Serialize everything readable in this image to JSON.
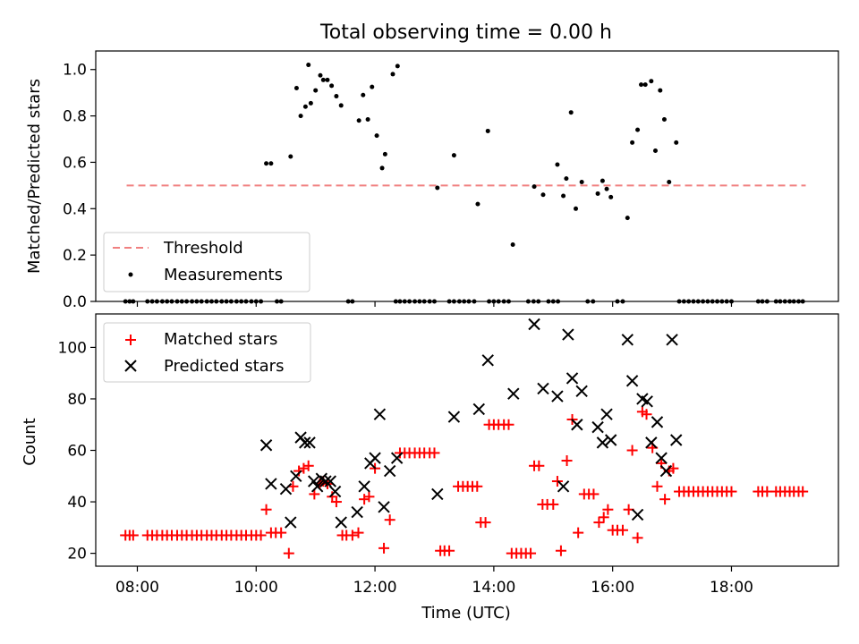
{
  "figure": {
    "title": "Total observing time = 0.00 h",
    "xlabel": "Time (UTC)",
    "xticks": [
      {
        "value": 8,
        "label": "08:00"
      },
      {
        "value": 10,
        "label": "10:00"
      },
      {
        "value": 12,
        "label": "12:00"
      },
      {
        "value": 14,
        "label": "14:00"
      },
      {
        "value": 16,
        "label": "16:00"
      },
      {
        "value": 18,
        "label": "18:00"
      }
    ],
    "xlim": [
      7.3,
      19.8
    ]
  },
  "chart_data": [
    {
      "type": "scatter",
      "panel": "top",
      "ylabel": "Matched/Predicted stars",
      "ylim": [
        0,
        1.08
      ],
      "yticks": [
        {
          "value": 0,
          "label": "0.0"
        },
        {
          "value": 0.2,
          "label": "0.2"
        },
        {
          "value": 0.4,
          "label": "0.4"
        },
        {
          "value": 0.6,
          "label": "0.6"
        },
        {
          "value": 0.8,
          "label": "0.8"
        },
        {
          "value": 1.0,
          "label": "1.0"
        }
      ],
      "legend_position": "lower-left",
      "legend": [
        "Threshold",
        "Measurements"
      ],
      "threshold": {
        "name": "Threshold",
        "value": 0.5,
        "x_range": [
          7.82,
          19.25
        ],
        "color": "#f08080",
        "style": "dashed"
      },
      "measurements": {
        "name": "Measurements",
        "color": "#000000",
        "x": [
          7.8,
          7.87,
          7.93,
          8.17,
          8.25,
          8.33,
          8.42,
          8.5,
          8.58,
          8.67,
          8.75,
          8.83,
          8.92,
          9.0,
          9.08,
          9.17,
          9.25,
          9.33,
          9.42,
          9.5,
          9.58,
          9.67,
          9.75,
          9.83,
          9.92,
          10.0,
          10.08,
          10.35,
          10.42,
          11.55,
          11.62,
          12.35,
          12.42,
          12.5,
          12.58,
          12.67,
          12.75,
          12.83,
          12.92,
          13.0,
          13.25,
          13.33,
          13.42,
          13.5,
          13.58,
          13.67,
          13.92,
          14.0,
          14.08,
          14.17,
          14.25,
          14.58,
          14.67,
          14.75,
          14.92,
          15.0,
          15.08,
          15.58,
          15.67,
          16.08,
          16.17,
          17.12,
          17.2,
          17.28,
          17.36,
          17.44,
          17.52,
          17.6,
          17.68,
          17.76,
          17.84,
          17.92,
          18.0,
          18.45,
          18.52,
          18.6,
          18.75,
          18.82,
          18.9,
          18.98,
          19.05,
          19.13,
          19.2,
          10.17,
          10.25,
          10.58,
          10.68,
          10.75,
          10.83,
          10.88,
          10.92,
          11.0,
          11.08,
          11.13,
          11.2,
          11.27,
          11.35,
          11.43,
          11.73,
          11.8,
          11.88,
          11.95,
          12.03,
          12.12,
          12.17,
          12.3,
          12.38,
          13.05,
          13.33,
          13.73,
          13.9,
          14.32,
          14.68,
          14.83,
          15.07,
          15.17,
          15.22,
          15.3,
          15.38,
          15.48,
          15.75,
          15.83,
          15.9,
          15.97,
          16.25,
          16.33,
          16.42,
          16.48,
          16.55,
          16.65,
          16.72,
          16.8,
          16.87,
          16.95,
          17.07
        ],
        "y": [
          0,
          0,
          0,
          0,
          0,
          0,
          0,
          0,
          0,
          0,
          0,
          0,
          0,
          0,
          0,
          0,
          0,
          0,
          0,
          0,
          0,
          0,
          0,
          0,
          0,
          0,
          0,
          0,
          0,
          0,
          0,
          0,
          0,
          0,
          0,
          0,
          0,
          0,
          0,
          0,
          0,
          0,
          0,
          0,
          0,
          0,
          0,
          0,
          0,
          0,
          0,
          0,
          0,
          0,
          0,
          0,
          0,
          0,
          0,
          0,
          0,
          0,
          0,
          0,
          0,
          0,
          0,
          0,
          0,
          0,
          0,
          0,
          0,
          0,
          0,
          0,
          0,
          0,
          0,
          0,
          0,
          0,
          0,
          0.595,
          0.595,
          0.625,
          0.92,
          0.8,
          0.84,
          1.02,
          0.855,
          0.91,
          0.975,
          0.955,
          0.955,
          0.93,
          0.885,
          0.845,
          0.78,
          0.89,
          0.785,
          0.925,
          0.715,
          0.575,
          0.635,
          0.98,
          1.015,
          0.49,
          0.63,
          0.42,
          0.735,
          0.245,
          0.495,
          0.46,
          0.59,
          0.455,
          0.53,
          0.815,
          0.4,
          0.515,
          0.465,
          0.52,
          0.485,
          0.45,
          0.36,
          0.685,
          0.74,
          0.935,
          0.935,
          0.95,
          0.65,
          0.91,
          0.785,
          0.515,
          0.685
        ]
      }
    },
    {
      "type": "scatter",
      "panel": "bottom",
      "ylabel": "Count",
      "ylim": [
        15,
        113
      ],
      "yticks": [
        {
          "value": 20,
          "label": "20"
        },
        {
          "value": 40,
          "label": "40"
        },
        {
          "value": 60,
          "label": "60"
        },
        {
          "value": 80,
          "label": "80"
        },
        {
          "value": 100,
          "label": "100"
        }
      ],
      "legend_position": "upper-left",
      "legend": [
        "Matched stars",
        "Predicted stars"
      ],
      "series": [
        {
          "name": "Matched stars",
          "marker": "plus",
          "color": "#ff0000",
          "points": [
            [
              7.8,
              27
            ],
            [
              7.87,
              27
            ],
            [
              7.93,
              27
            ],
            [
              8.17,
              27
            ],
            [
              8.25,
              27
            ],
            [
              8.33,
              27
            ],
            [
              8.42,
              27
            ],
            [
              8.5,
              27
            ],
            [
              8.58,
              27
            ],
            [
              8.67,
              27
            ],
            [
              8.75,
              27
            ],
            [
              8.83,
              27
            ],
            [
              8.92,
              27
            ],
            [
              9.0,
              27
            ],
            [
              9.08,
              27
            ],
            [
              9.17,
              27
            ],
            [
              9.25,
              27
            ],
            [
              9.33,
              27
            ],
            [
              9.42,
              27
            ],
            [
              9.5,
              27
            ],
            [
              9.58,
              27
            ],
            [
              9.67,
              27
            ],
            [
              9.75,
              27
            ],
            [
              9.83,
              27
            ],
            [
              9.92,
              27
            ],
            [
              10.0,
              27
            ],
            [
              10.08,
              27
            ],
            [
              10.17,
              37
            ],
            [
              10.25,
              28
            ],
            [
              10.33,
              28
            ],
            [
              10.42,
              28
            ],
            [
              10.55,
              20
            ],
            [
              10.62,
              46
            ],
            [
              10.72,
              52
            ],
            [
              10.8,
              53
            ],
            [
              10.88,
              54
            ],
            [
              10.98,
              43
            ],
            [
              11.07,
              47
            ],
            [
              11.13,
              48
            ],
            [
              11.2,
              47
            ],
            [
              11.28,
              42
            ],
            [
              11.35,
              40
            ],
            [
              11.45,
              27
            ],
            [
              11.52,
              27
            ],
            [
              11.62,
              27
            ],
            [
              11.72,
              28
            ],
            [
              11.82,
              41
            ],
            [
              11.9,
              42
            ],
            [
              12.0,
              53
            ],
            [
              12.15,
              22
            ],
            [
              12.25,
              33
            ],
            [
              12.42,
              59
            ],
            [
              12.5,
              59
            ],
            [
              12.58,
              59
            ],
            [
              12.67,
              59
            ],
            [
              12.75,
              59
            ],
            [
              12.83,
              59
            ],
            [
              12.92,
              59
            ],
            [
              13.0,
              59
            ],
            [
              13.1,
              21
            ],
            [
              13.17,
              21
            ],
            [
              13.25,
              21
            ],
            [
              13.4,
              46
            ],
            [
              13.48,
              46
            ],
            [
              13.56,
              46
            ],
            [
              13.64,
              46
            ],
            [
              13.72,
              46
            ],
            [
              13.78,
              32
            ],
            [
              13.86,
              32
            ],
            [
              13.92,
              70
            ],
            [
              14.0,
              70
            ],
            [
              14.08,
              70
            ],
            [
              14.17,
              70
            ],
            [
              14.25,
              70
            ],
            [
              14.3,
              20
            ],
            [
              14.38,
              20
            ],
            [
              14.46,
              20
            ],
            [
              14.54,
              20
            ],
            [
              14.62,
              20
            ],
            [
              14.68,
              54
            ],
            [
              14.76,
              54
            ],
            [
              14.82,
              39
            ],
            [
              14.9,
              39
            ],
            [
              15.0,
              39
            ],
            [
              15.07,
              48
            ],
            [
              15.13,
              21
            ],
            [
              15.23,
              56
            ],
            [
              15.32,
              72
            ],
            [
              15.42,
              28
            ],
            [
              15.52,
              43
            ],
            [
              15.6,
              43
            ],
            [
              15.68,
              43
            ],
            [
              15.77,
              32
            ],
            [
              15.85,
              34
            ],
            [
              15.92,
              37
            ],
            [
              16.0,
              29
            ],
            [
              16.08,
              29
            ],
            [
              16.17,
              29
            ],
            [
              16.27,
              37
            ],
            [
              16.33,
              60
            ],
            [
              16.42,
              26
            ],
            [
              16.5,
              75
            ],
            [
              16.57,
              74
            ],
            [
              16.67,
              61
            ],
            [
              16.75,
              46
            ],
            [
              16.82,
              55
            ],
            [
              16.88,
              41
            ],
            [
              16.95,
              52
            ],
            [
              17.02,
              53
            ],
            [
              17.12,
              44
            ],
            [
              17.2,
              44
            ],
            [
              17.28,
              44
            ],
            [
              17.36,
              44
            ],
            [
              17.44,
              44
            ],
            [
              17.52,
              44
            ],
            [
              17.6,
              44
            ],
            [
              17.68,
              44
            ],
            [
              17.76,
              44
            ],
            [
              17.84,
              44
            ],
            [
              17.92,
              44
            ],
            [
              18.0,
              44
            ],
            [
              18.45,
              44
            ],
            [
              18.52,
              44
            ],
            [
              18.6,
              44
            ],
            [
              18.75,
              44
            ],
            [
              18.82,
              44
            ],
            [
              18.9,
              44
            ],
            [
              18.98,
              44
            ],
            [
              19.05,
              44
            ],
            [
              19.13,
              44
            ],
            [
              19.2,
              44
            ]
          ]
        },
        {
          "name": "Predicted stars",
          "marker": "x",
          "color": "#000000",
          "points": [
            [
              10.17,
              62
            ],
            [
              10.25,
              47
            ],
            [
              10.5,
              45
            ],
            [
              10.58,
              32
            ],
            [
              10.67,
              50
            ],
            [
              10.75,
              65
            ],
            [
              10.82,
              63
            ],
            [
              10.9,
              63
            ],
            [
              10.97,
              48
            ],
            [
              11.03,
              46
            ],
            [
              11.1,
              49
            ],
            [
              11.17,
              48
            ],
            [
              11.25,
              48
            ],
            [
              11.33,
              44
            ],
            [
              11.43,
              32
            ],
            [
              11.7,
              36
            ],
            [
              11.82,
              46
            ],
            [
              11.92,
              55
            ],
            [
              12.0,
              57
            ],
            [
              12.08,
              74
            ],
            [
              12.15,
              38
            ],
            [
              12.25,
              52
            ],
            [
              12.37,
              57
            ],
            [
              13.05,
              43
            ],
            [
              13.33,
              73
            ],
            [
              13.75,
              76
            ],
            [
              13.9,
              95
            ],
            [
              14.33,
              82
            ],
            [
              14.68,
              109
            ],
            [
              14.83,
              84
            ],
            [
              15.07,
              81
            ],
            [
              15.17,
              46
            ],
            [
              15.25,
              105
            ],
            [
              15.32,
              88
            ],
            [
              15.4,
              70
            ],
            [
              15.48,
              83
            ],
            [
              15.75,
              69
            ],
            [
              15.83,
              63
            ],
            [
              15.9,
              74
            ],
            [
              15.97,
              64
            ],
            [
              16.25,
              103
            ],
            [
              16.33,
              87
            ],
            [
              16.42,
              35
            ],
            [
              16.5,
              80
            ],
            [
              16.58,
              79
            ],
            [
              16.65,
              63
            ],
            [
              16.75,
              71
            ],
            [
              16.82,
              57
            ],
            [
              16.9,
              52
            ],
            [
              17.0,
              103
            ],
            [
              17.07,
              64
            ]
          ]
        }
      ]
    }
  ]
}
